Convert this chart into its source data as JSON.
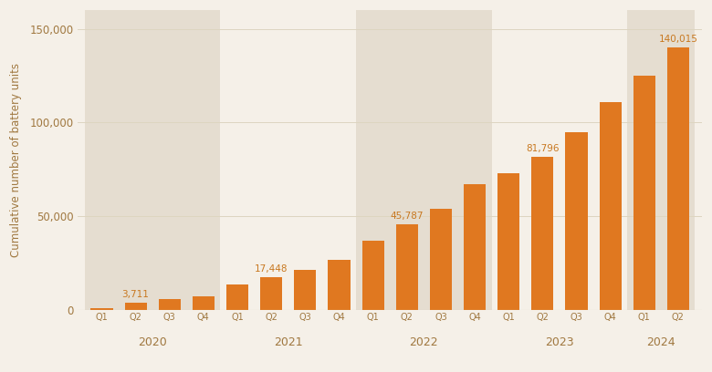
{
  "categories": [
    "Q1",
    "Q2",
    "Q3",
    "Q4",
    "Q1",
    "Q2",
    "Q3",
    "Q4",
    "Q1",
    "Q2",
    "Q3",
    "Q4",
    "Q1",
    "Q2",
    "Q3",
    "Q4",
    "Q1",
    "Q2"
  ],
  "year_labels": [
    "2020",
    "2021",
    "2022",
    "2023",
    "2024"
  ],
  "year_centers": [
    1.5,
    5.5,
    9.5,
    13.5,
    17.0
  ],
  "values": [
    1200,
    3711,
    5800,
    7500,
    13500,
    17448,
    21500,
    27000,
    37000,
    45787,
    54000,
    67000,
    73000,
    81796,
    95000,
    111000,
    125000,
    140015
  ],
  "labeled_indices": [
    1,
    5,
    9,
    13,
    17
  ],
  "labels": [
    "3,711",
    "17,448",
    "45,787",
    "81,796",
    "140,015"
  ],
  "bar_color": "#e07820",
  "background_color": "#f5f0e8",
  "shaded_band_color": "#e5ddd0",
  "ylabel": "Cumulative number of battery units",
  "yticks": [
    0,
    50000,
    100000,
    150000
  ],
  "ytick_labels": [
    "0",
    "50,000",
    "100,000",
    "150,000"
  ],
  "ylim": [
    0,
    160000
  ],
  "shaded_year_indices": [
    0,
    2,
    4
  ],
  "year_group_starts": [
    0,
    4,
    8,
    12,
    16
  ],
  "year_group_sizes": [
    4,
    4,
    4,
    4,
    2
  ],
  "axis_text_color": "#a07840",
  "label_color": "#c87820",
  "grid_color": "#ddd5c0"
}
